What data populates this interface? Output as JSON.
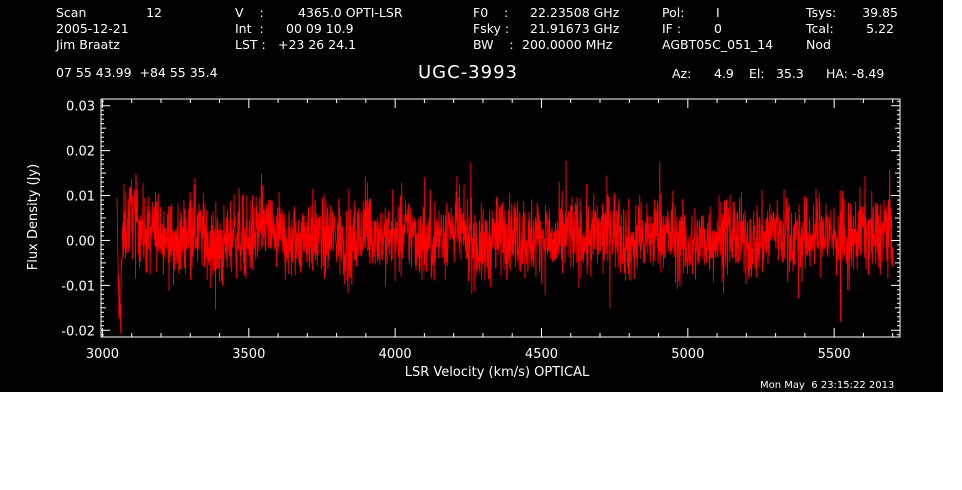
{
  "header": {
    "scan_label": "Scan",
    "scan_number": "12",
    "date": "2005-12-21",
    "observer": "Jim Braatz",
    "v_label": "V    :",
    "v_value": "4365.0 OPTI-LSR",
    "int_label": "Int  :",
    "int_value": "00 09 10.9",
    "lst_label": "LST :",
    "lst_value": "+23 26 24.1",
    "f0_label": "F0    :",
    "f0_value": "22.23508 GHz",
    "fsky_label": "Fsky :",
    "fsky_value": "21.91673 GHz",
    "bw_label": "BW    :",
    "bw_value": "200.0000 MHz",
    "pol_label": "Pol:",
    "pol_value": "I",
    "if_label": "IF :",
    "if_value": "0",
    "project": "AGBT05C_051_14",
    "tsys_label": "Tsys:",
    "tsys_value": "39.85",
    "tcal_label": "Tcal:",
    "tcal_value": "5.22",
    "mode": "Nod",
    "coords": "07 55 43.99  +84 55 35.4",
    "source": "UGC-3993",
    "az_label": "Az:",
    "az_value": "4.9",
    "el_label": "El:",
    "el_value": "35.3",
    "ha_label": "HA:",
    "ha_value": "-8.49"
  },
  "timestamp": "Mon May  6 23:15:22 2013",
  "colors": {
    "background": "#000000",
    "axes": "#ffffff",
    "trace": "#ff0000"
  },
  "chart_data": {
    "type": "line",
    "xlabel": "LSR Velocity (km/s) OPTICAL",
    "ylabel": "Flux Density (Jy)",
    "xlim": [
      2995,
      5725
    ],
    "ylim": [
      -0.0215,
      0.0315
    ],
    "xticks": [
      3000,
      3500,
      4000,
      4500,
      5000,
      5500
    ],
    "xtick_labels": [
      "3000",
      "3500",
      "4000",
      "4500",
      "5000",
      "5500"
    ],
    "yticks": [
      -0.02,
      -0.01,
      0.0,
      0.01,
      0.02,
      0.03
    ],
    "ytick_labels": [
      "-0.02",
      "-0.01",
      "0.00",
      "0.01",
      "0.02",
      "0.03"
    ],
    "grid": false,
    "series": [
      {
        "color": "#ff0000",
        "x": [
          3050,
          3055,
          3060,
          3070,
          3100,
          3150,
          3200,
          3250,
          3300,
          3350,
          3400,
          3450,
          3500,
          3550,
          3600,
          3650,
          3700,
          3750,
          3800,
          3850,
          3900,
          3950,
          4000,
          4050,
          4100,
          4150,
          4200,
          4250,
          4300,
          4350,
          4400,
          4450,
          4500,
          4550,
          4600,
          4650,
          4700,
          4750,
          4800,
          4850,
          4900,
          4950,
          5000,
          5050,
          5100,
          5150,
          5200,
          5250,
          5300,
          5350,
          5400,
          5450,
          5500,
          5550,
          5600,
          5650,
          5680,
          5700
        ],
        "y": [
          0.005,
          -0.012,
          -0.018,
          0.002,
          0.006,
          0.001,
          0.003,
          -0.002,
          0.004,
          0.001,
          -0.003,
          0.002,
          0.0,
          0.003,
          0.001,
          -0.001,
          0.002,
          0.0,
          0.001,
          -0.002,
          0.003,
          0.001,
          0.0,
          0.002,
          -0.001,
          0.001,
          0.003,
          0.0,
          -0.002,
          0.001,
          0.002,
          0.0,
          0.001,
          -0.001,
          0.002,
          0.0,
          0.001,
          0.003,
          -0.001,
          0.0,
          0.002,
          0.001,
          -0.002,
          0.0,
          0.001,
          0.002,
          -0.001,
          0.0,
          0.003,
          0.001,
          0.0,
          0.002,
          0.001,
          -0.001,
          0.003,
          0.0,
          0.004,
          0.002
        ],
        "noise_amplitude_jy": 0.008
      }
    ]
  }
}
